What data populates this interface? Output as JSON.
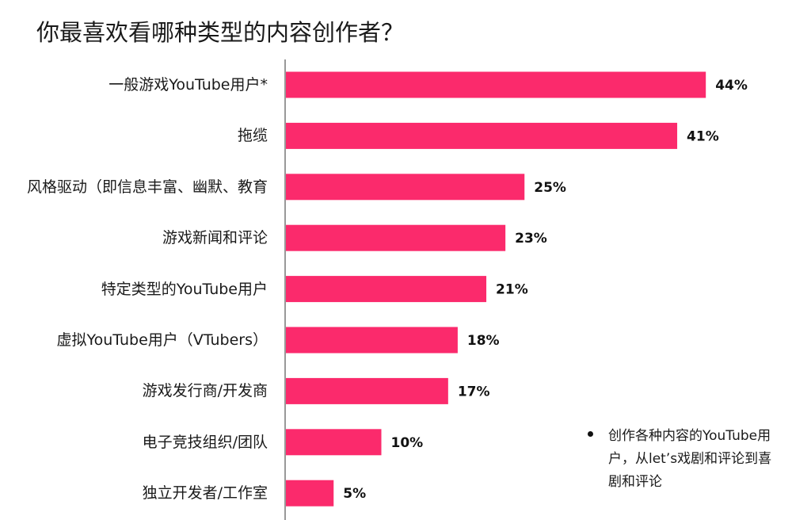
{
  "chart_data": {
    "type": "bar",
    "orientation": "horizontal",
    "title": "你最喜欢看哪种类型的内容创作者？",
    "categories": [
      "一般游戏YouTube用户*",
      "拖缆",
      "风格驱动（即信息丰富、幽默、教育",
      "游戏新闻和评论",
      "特定类型的YouTube用户",
      "虚拟YouTube用户（VTubers）",
      "游戏发行商/开发商",
      "电子竞技组织/团队",
      "独立开发者/工作室"
    ],
    "values": [
      44,
      41,
      25,
      23,
      21,
      18,
      17,
      10,
      5
    ],
    "value_labels": [
      "44%",
      "41%",
      "25%",
      "23%",
      "21%",
      "18%",
      "17%",
      "10%",
      "5%"
    ],
    "color": "#fb2a6c",
    "annotation": "创作各种内容的YouTube用户，从let’s戏剧和评论到喜剧和评论"
  }
}
